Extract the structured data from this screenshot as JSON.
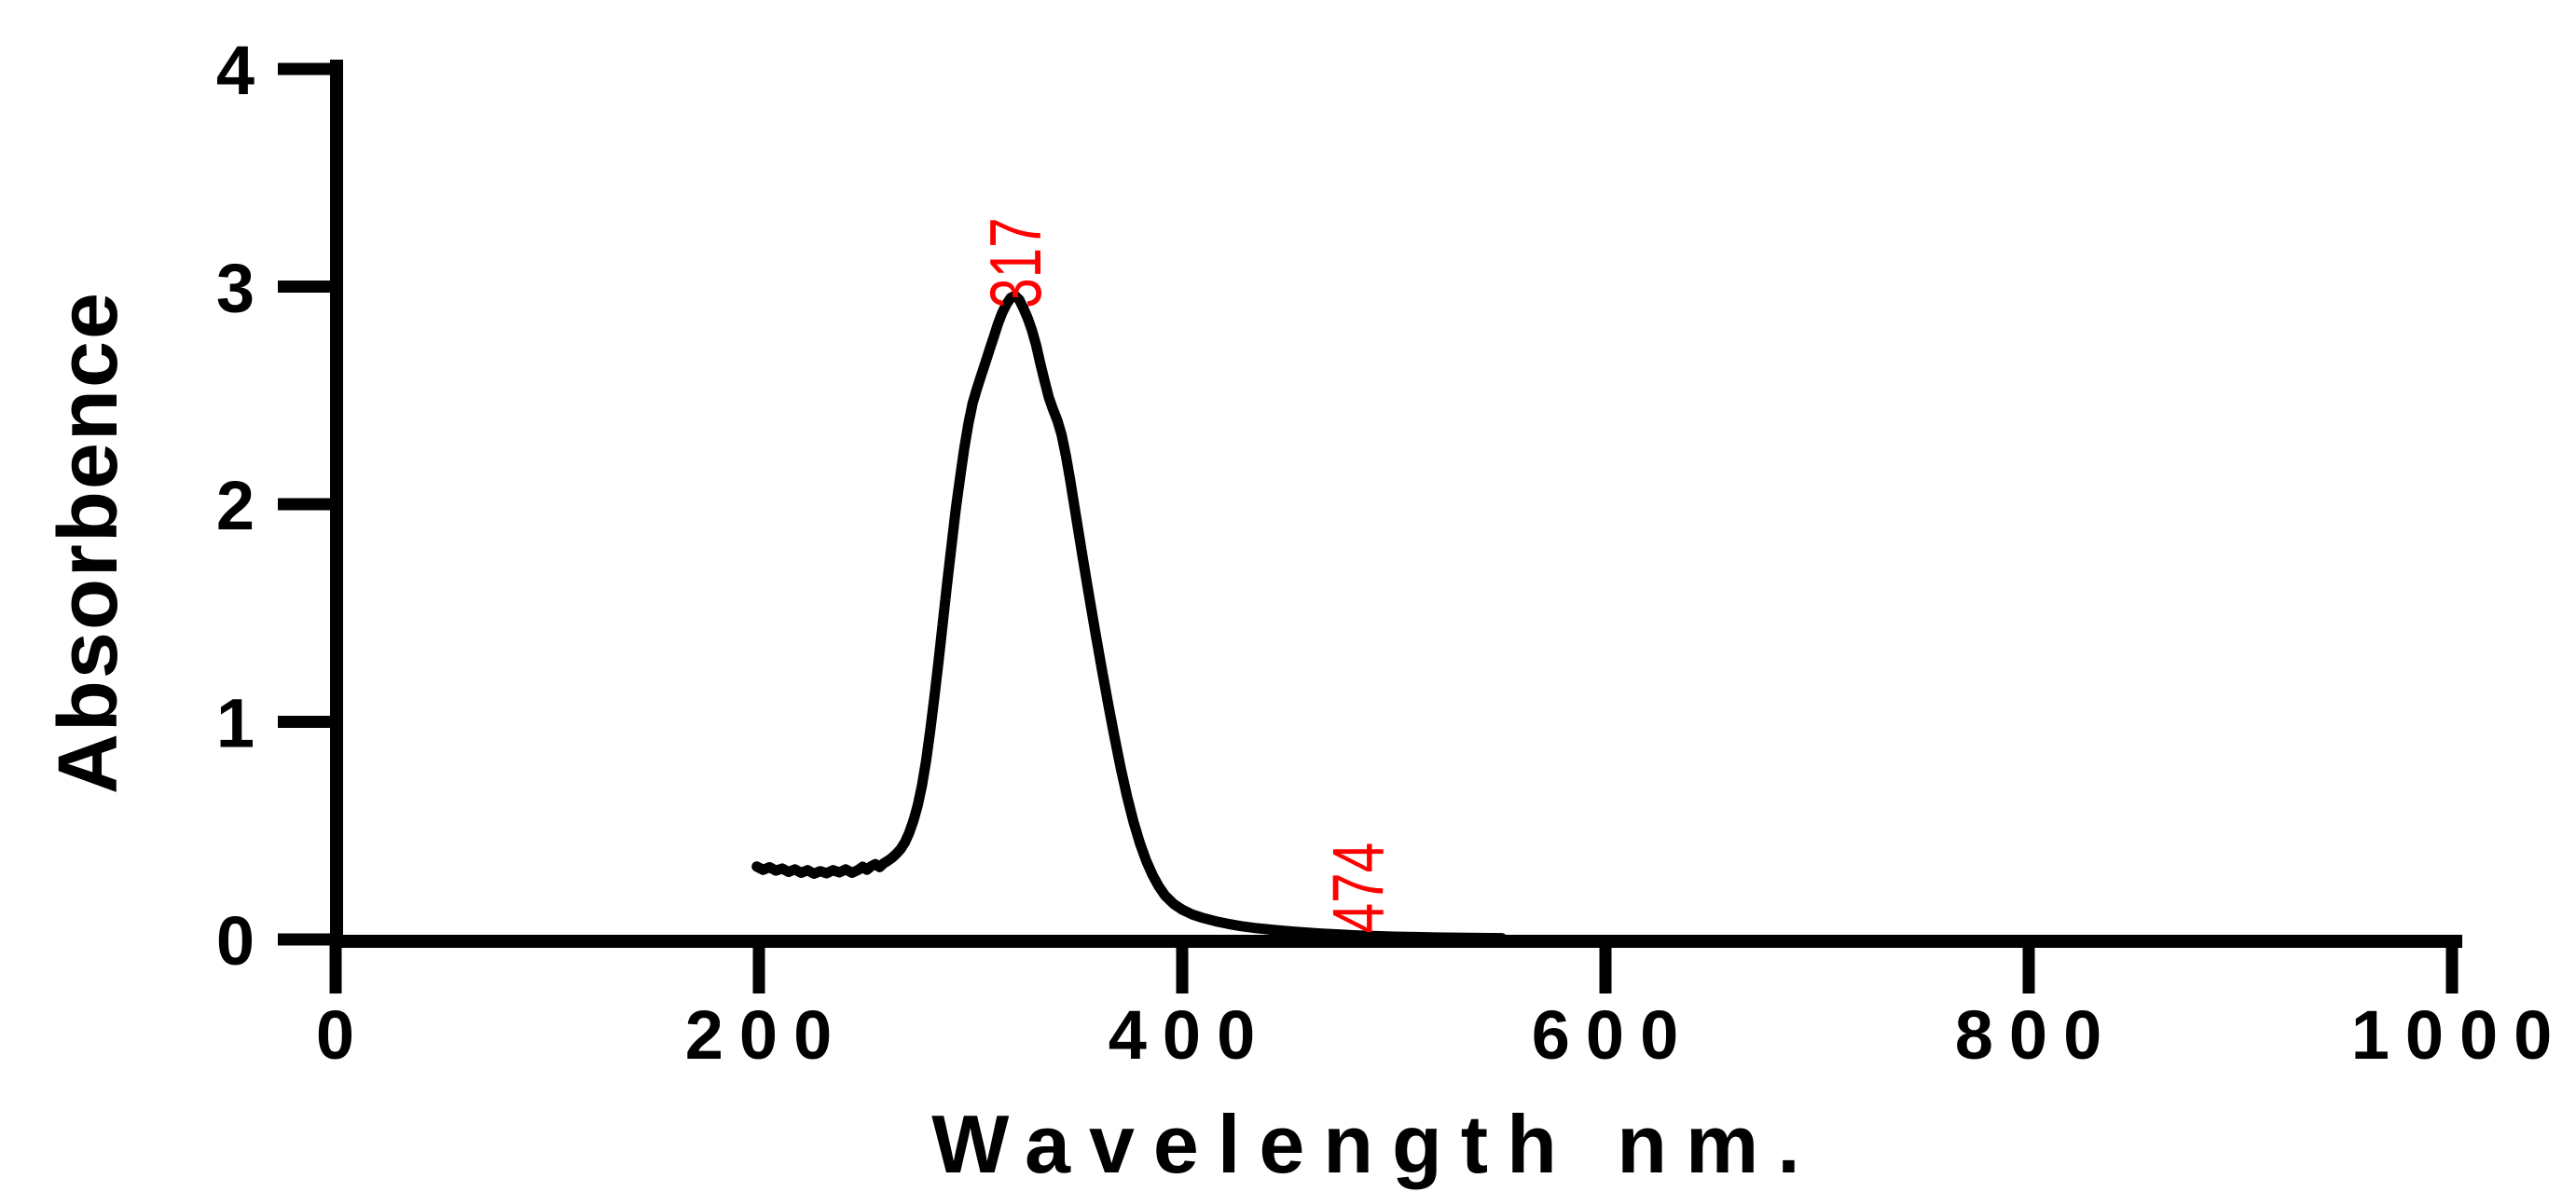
{
  "page": {
    "background_color": "#ffffff"
  },
  "chart_data": {
    "type": "line",
    "title": "",
    "xlabel": "Wavelength nm.",
    "ylabel": "Absorbence",
    "xlim": [
      0,
      1000
    ],
    "ylim": [
      0,
      4
    ],
    "x_ticks": [
      0,
      200,
      400,
      600,
      800,
      1000
    ],
    "y_ticks": [
      0,
      1,
      2,
      3,
      4
    ],
    "grid": false,
    "legend": "none",
    "axis_color": "#000000",
    "line_color": "#000000",
    "annotation_color": "#ff0000",
    "annotations": [
      {
        "text": "317",
        "pos_nm": 333,
        "pos_abs": 2.9,
        "rotation_deg": -90
      },
      {
        "text": "474",
        "pos_nm": 495,
        "pos_abs": 0.028,
        "rotation_deg": -90
      }
    ],
    "series": [
      {
        "name": "absorbance-spectrum",
        "peak_nm": 317,
        "peak_abs": 2.96,
        "tail_nm": 474,
        "points": [
          [
            199,
            0.335
          ],
          [
            202,
            0.32
          ],
          [
            205,
            0.332
          ],
          [
            208,
            0.316
          ],
          [
            211,
            0.326
          ],
          [
            214,
            0.31
          ],
          [
            217,
            0.322
          ],
          [
            220,
            0.306
          ],
          [
            223,
            0.318
          ],
          [
            226,
            0.302
          ],
          [
            229,
            0.314
          ],
          [
            232,
            0.304
          ],
          [
            235,
            0.318
          ],
          [
            238,
            0.308
          ],
          [
            241,
            0.322
          ],
          [
            244,
            0.306
          ],
          [
            247,
            0.32
          ],
          [
            249,
            0.334
          ],
          [
            251,
            0.32
          ],
          [
            253,
            0.336
          ],
          [
            255,
            0.346
          ],
          [
            257,
            0.332
          ],
          [
            259,
            0.35
          ],
          [
            261,
            0.362
          ],
          [
            263,
            0.376
          ],
          [
            265,
            0.394
          ],
          [
            267,
            0.416
          ],
          [
            269,
            0.446
          ],
          [
            271,
            0.49
          ],
          [
            273,
            0.545
          ],
          [
            275,
            0.615
          ],
          [
            277,
            0.705
          ],
          [
            279,
            0.82
          ],
          [
            281,
            0.965
          ],
          [
            283,
            1.12
          ],
          [
            285,
            1.29
          ],
          [
            287,
            1.465
          ],
          [
            289,
            1.64
          ],
          [
            291,
            1.81
          ],
          [
            293,
            1.975
          ],
          [
            295,
            2.12
          ],
          [
            297,
            2.255
          ],
          [
            299,
            2.37
          ],
          [
            301,
            2.465
          ],
          [
            303,
            2.53
          ],
          [
            305,
            2.59
          ],
          [
            307,
            2.65
          ],
          [
            309,
            2.71
          ],
          [
            311,
            2.77
          ],
          [
            313,
            2.83
          ],
          [
            315,
            2.88
          ],
          [
            317,
            2.92
          ],
          [
            319,
            2.948
          ],
          [
            321,
            2.958
          ],
          [
            323,
            2.94
          ],
          [
            325,
            2.9
          ],
          [
            327,
            2.855
          ],
          [
            329,
            2.8
          ],
          [
            331,
            2.73
          ],
          [
            333,
            2.645
          ],
          [
            335,
            2.565
          ],
          [
            337,
            2.49
          ],
          [
            339,
            2.435
          ],
          [
            341,
            2.385
          ],
          [
            343,
            2.32
          ],
          [
            345,
            2.225
          ],
          [
            347,
            2.115
          ],
          [
            350,
            1.935
          ],
          [
            353,
            1.755
          ],
          [
            356,
            1.58
          ],
          [
            359,
            1.41
          ],
          [
            362,
            1.245
          ],
          [
            365,
            1.085
          ],
          [
            368,
            0.93
          ],
          [
            371,
            0.785
          ],
          [
            374,
            0.655
          ],
          [
            377,
            0.54
          ],
          [
            380,
            0.443
          ],
          [
            383,
            0.362
          ],
          [
            386,
            0.296
          ],
          [
            389,
            0.243
          ],
          [
            392,
            0.201
          ],
          [
            396,
            0.163
          ],
          [
            400,
            0.137
          ],
          [
            405,
            0.114
          ],
          [
            410,
            0.098
          ],
          [
            416,
            0.083
          ],
          [
            422,
            0.071
          ],
          [
            428,
            0.061
          ],
          [
            435,
            0.052
          ],
          [
            442,
            0.045
          ],
          [
            450,
            0.038
          ],
          [
            458,
            0.032
          ],
          [
            466,
            0.027
          ],
          [
            474,
            0.023
          ],
          [
            482,
            0.019
          ],
          [
            490,
            0.016
          ],
          [
            500,
            0.013
          ],
          [
            510,
            0.011
          ],
          [
            520,
            0.009
          ],
          [
            530,
            0.008
          ],
          [
            540,
            0.007
          ],
          [
            551,
            0.006
          ]
        ]
      }
    ]
  }
}
